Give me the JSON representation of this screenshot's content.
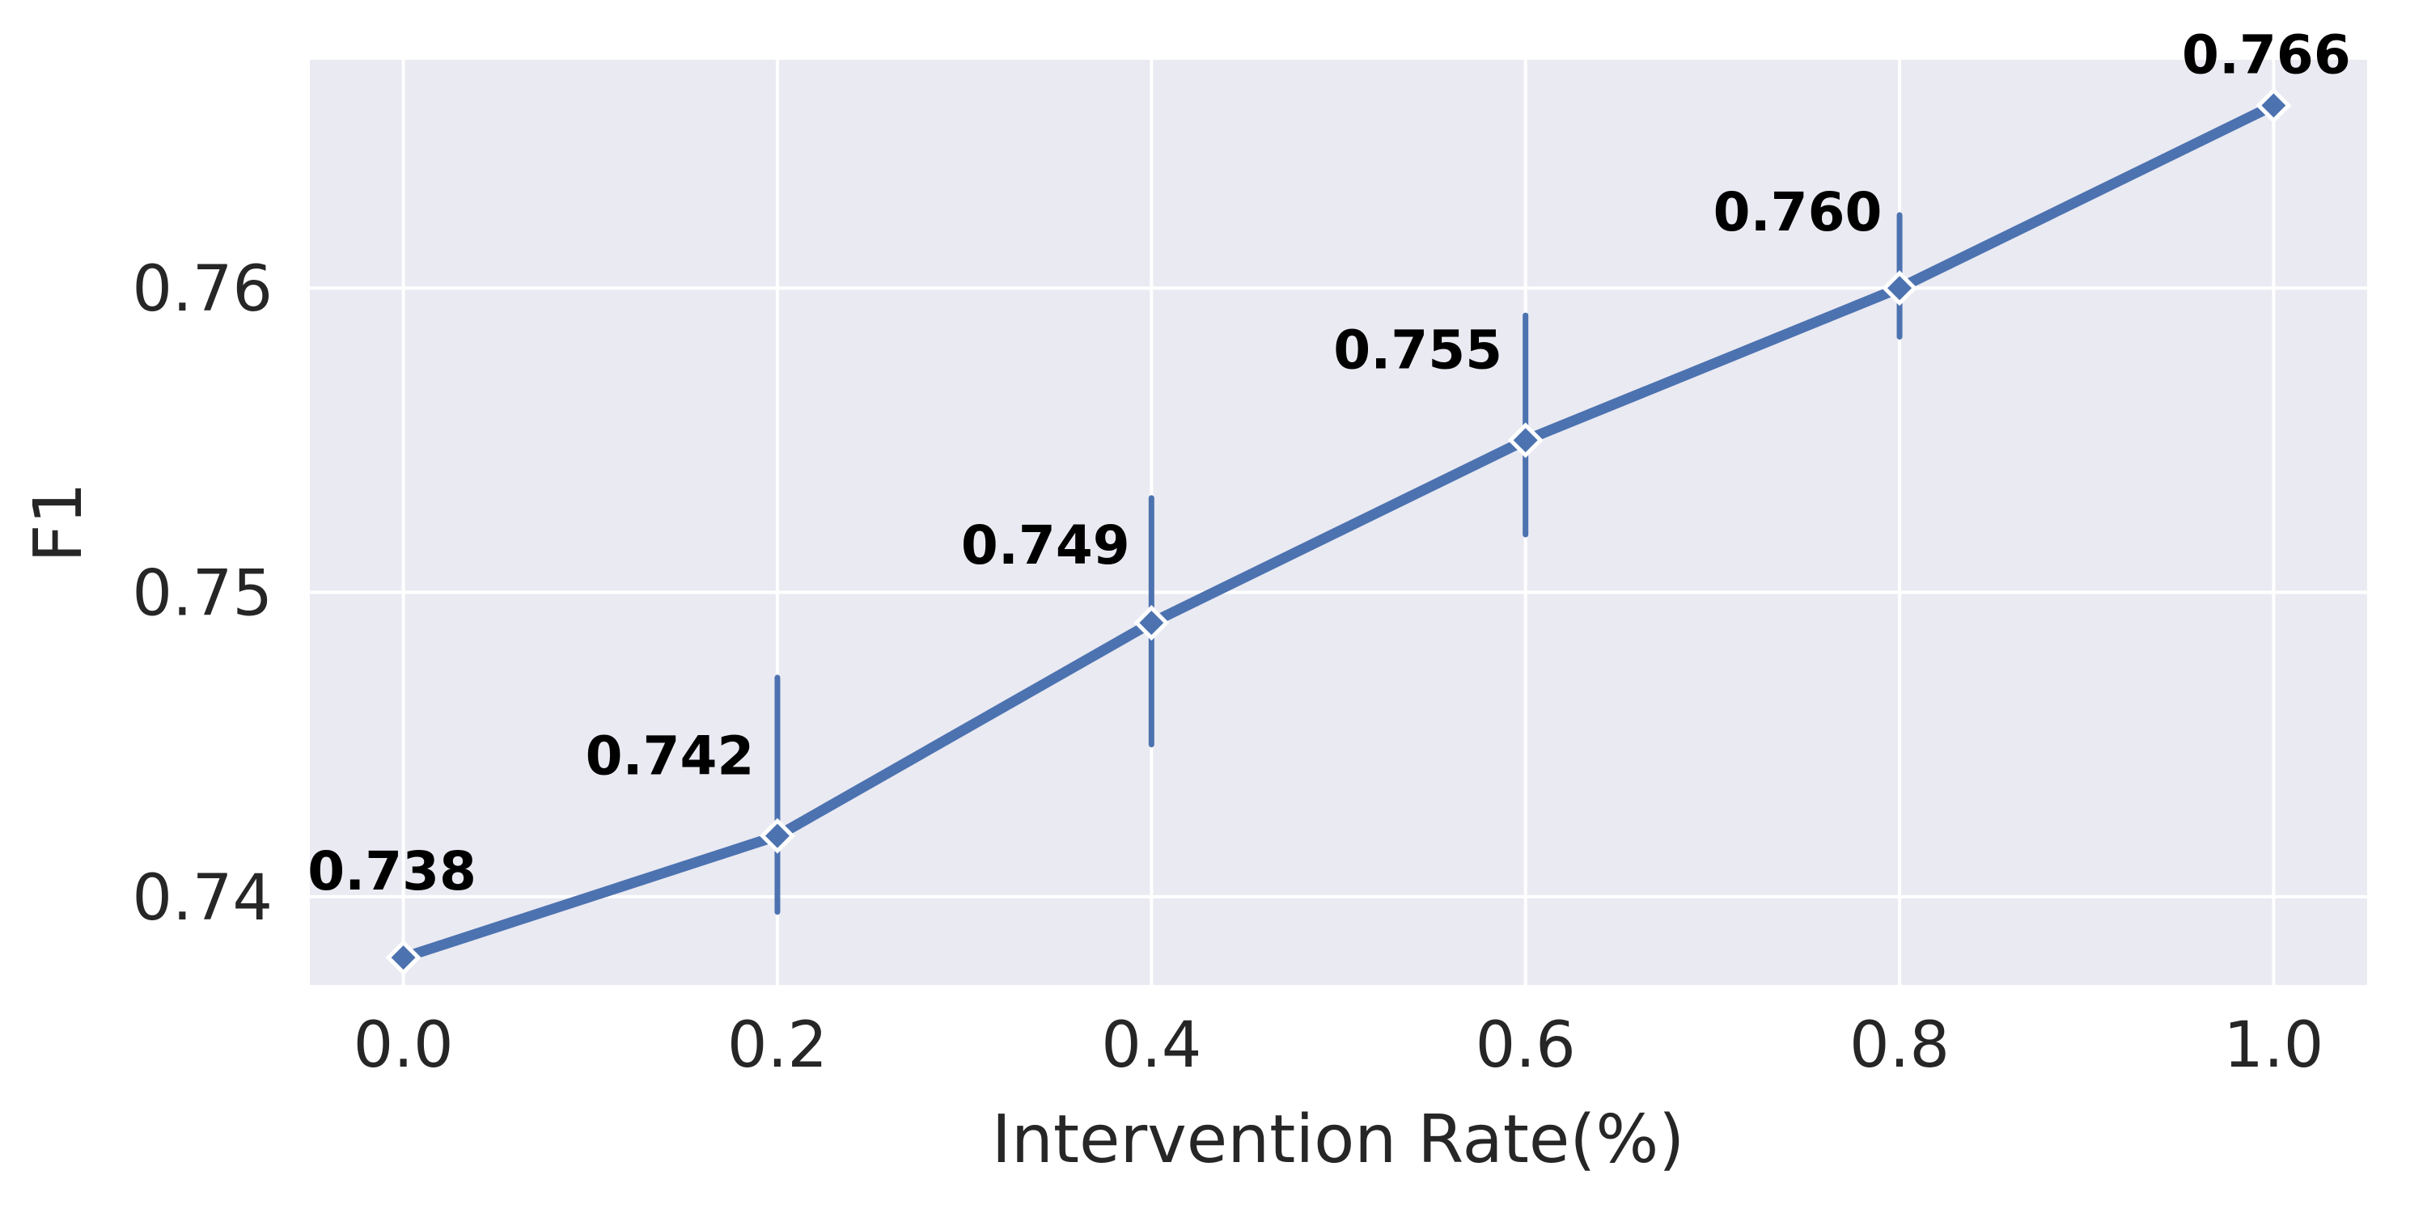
{
  "chart_data": {
    "type": "line",
    "title": "",
    "xlabel": "Intervention Rate(%)",
    "ylabel": "F1",
    "x": [
      0.0,
      0.2,
      0.4,
      0.6,
      0.8,
      1.0
    ],
    "series": [
      {
        "name": "F1",
        "values": [
          0.738,
          0.742,
          0.749,
          0.755,
          0.76,
          0.766
        ],
        "point_labels": [
          "0.738",
          "0.742",
          "0.749",
          "0.755",
          "0.760",
          "0.766"
        ],
        "error_bars": [
          null,
          [
            0.7395,
            0.7472
          ],
          [
            0.745,
            0.7531
          ],
          [
            0.7519,
            0.7591
          ],
          [
            0.7584,
            0.7624
          ],
          null
        ],
        "marker": "diamond"
      }
    ],
    "x_tick_labels": [
      "0.0",
      "0.2",
      "0.4",
      "0.6",
      "0.8",
      "1.0"
    ],
    "y_tick_labels": [
      "0.74",
      "0.75",
      "0.76"
    ],
    "y_tick_values": [
      0.74,
      0.75,
      0.76
    ],
    "xlim": [
      -0.05,
      1.05
    ],
    "ylim": [
      0.7371,
      0.7675
    ],
    "grid": true,
    "legend_position": "none",
    "style": {
      "figure_background": "#FFFFFF",
      "plot_background": "#EAEAF2",
      "grid_color": "#FFFFFF",
      "line_color": "#4C72B0",
      "marker_fill": "#4C72B0",
      "marker_edge_color": "#FFFFFF",
      "error_bar_color": "#4C72B0",
      "tick_text_color": "#262626",
      "axis_text_color": "#262626",
      "point_label_color": "#000000"
    }
  }
}
